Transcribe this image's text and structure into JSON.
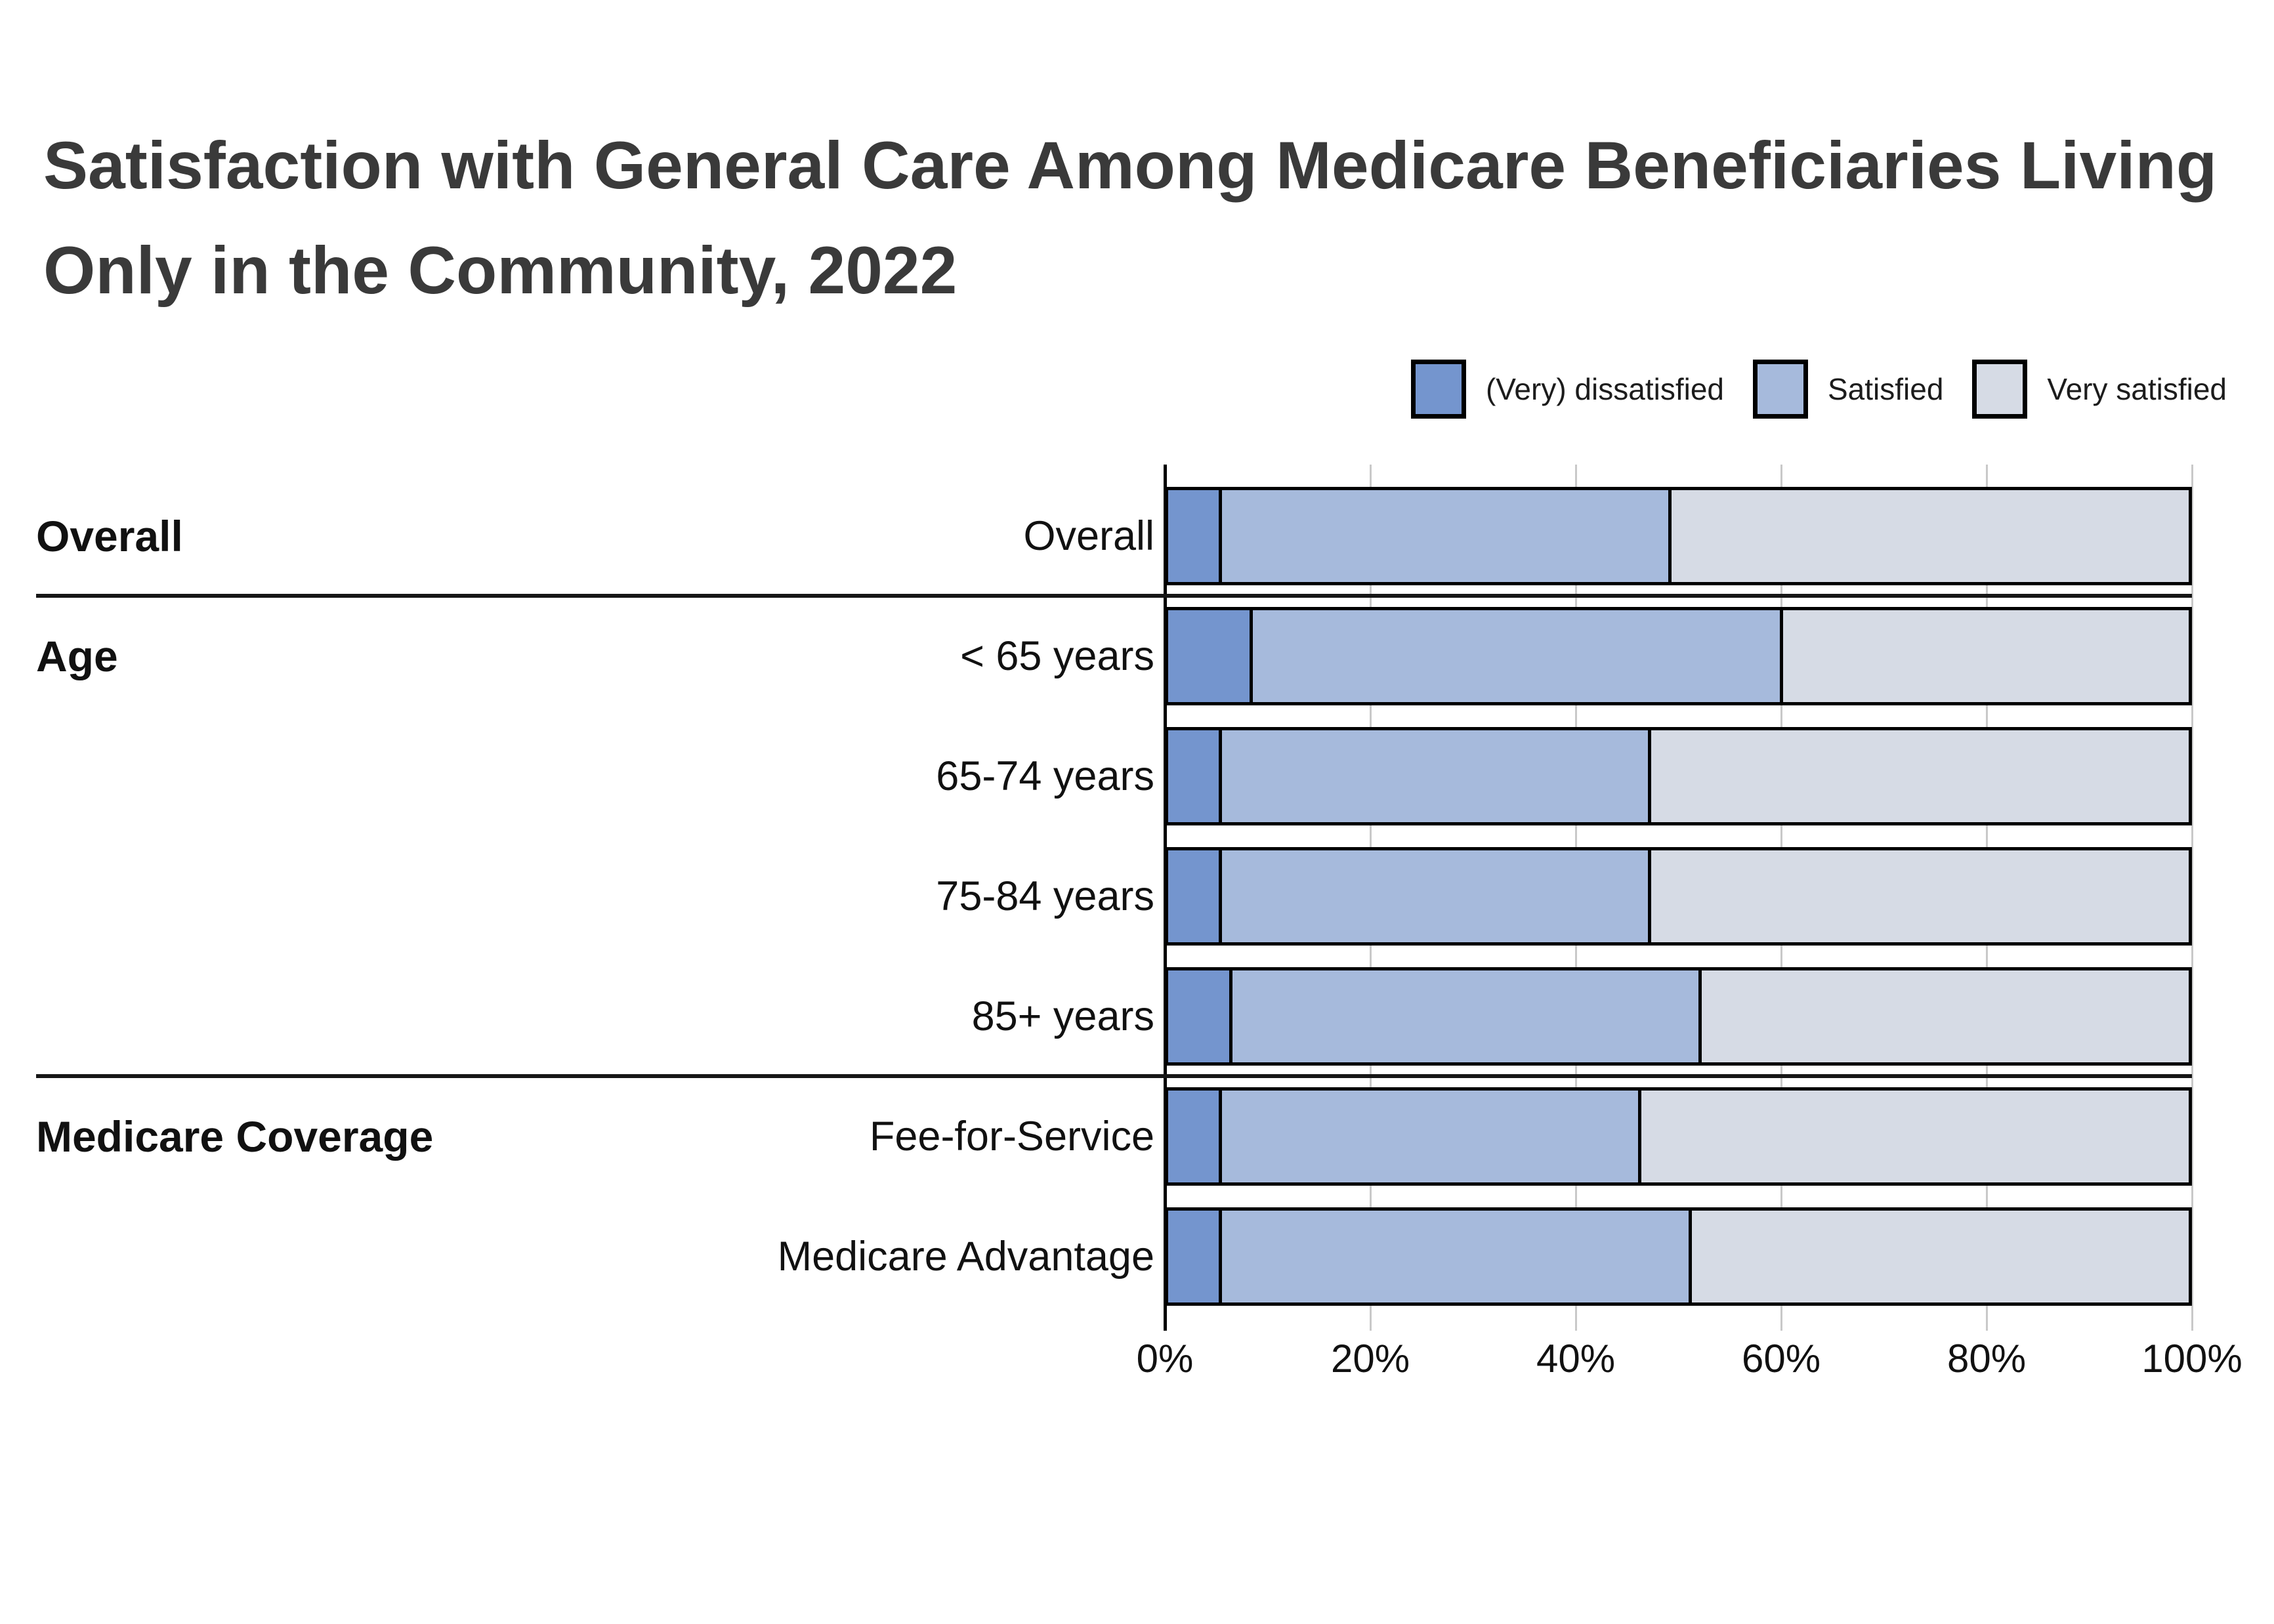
{
  "chart_data": {
    "type": "bar",
    "orientation": "horizontal",
    "stacked": true,
    "title": "Satisfaction with General Care Among Medicare Beneficiaries Living Only in the Community, 2022",
    "categories": [
      "Overall",
      "< 65 years",
      "65-74 years",
      "75-84 years",
      "85+ years",
      "Fee-for-Service",
      "Medicare Advantage"
    ],
    "series": [
      {
        "name": "(Very) dissatisfied",
        "color": "#7495CE",
        "values": [
          5,
          8,
          5,
          5,
          6,
          5,
          5
        ]
      },
      {
        "name": "Satisfied",
        "color": "#A6BADC",
        "values": [
          44,
          52,
          42,
          42,
          46,
          41,
          46
        ]
      },
      {
        "name": "Very satisfied",
        "color": "#D6DBE5",
        "values": [
          51,
          40,
          53,
          53,
          48,
          54,
          49
        ]
      }
    ],
    "row_groups": [
      {
        "label": "Overall",
        "first_row": 0,
        "last_row": 0
      },
      {
        "label": "Age",
        "first_row": 1,
        "last_row": 4
      },
      {
        "label": "Medicare Coverage",
        "first_row": 5,
        "last_row": 6
      }
    ],
    "xlabel": "",
    "ylabel": "",
    "xlim": [
      0,
      100
    ],
    "x_ticks": [
      {
        "value": 0,
        "label": "0%"
      },
      {
        "value": 20,
        "label": "20%"
      },
      {
        "value": 40,
        "label": "40%"
      },
      {
        "value": 60,
        "label": "60%"
      },
      {
        "value": 80,
        "label": "80%"
      },
      {
        "value": 100,
        "label": "100%"
      }
    ],
    "grid": true,
    "legend_position": "top-right",
    "colors": {
      "bar_border": "#000000",
      "gridline": "#c9c9c9",
      "axis_line": "#000000",
      "separator": "#161616",
      "title_text": "#3a3a3a",
      "label_text": "#111111",
      "background": "#ffffff"
    }
  }
}
